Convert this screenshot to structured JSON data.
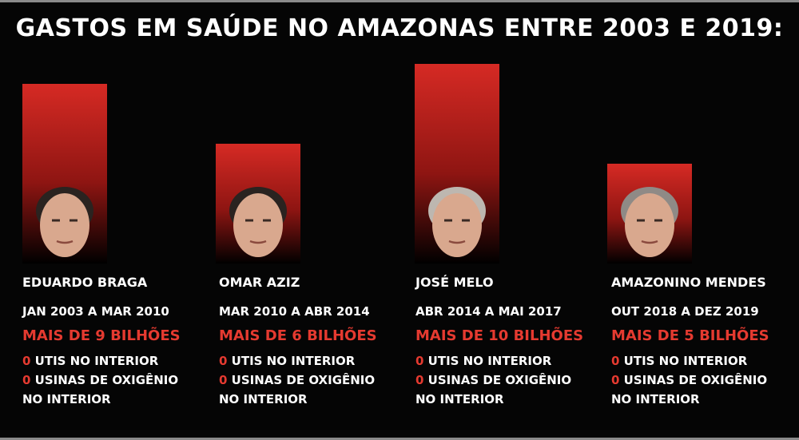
{
  "title": "GASTOS EM SAÚDE NO AMAZONAS ENTRE 2003 E 2019:",
  "colors": {
    "bar_top": "#d62a24",
    "bar_bottom": "#000000",
    "accent": "#e53a30"
  },
  "chart_data": {
    "type": "bar",
    "title": "GASTOS EM SAÚDE NO AMAZONAS ENTRE 2003 E 2019:",
    "categories": [
      "EDUARDO BRAGA",
      "OMAR AZIZ",
      "JOSÉ MELO",
      "AMAZONINO MENDES"
    ],
    "values": [
      9,
      6,
      10,
      5
    ],
    "ylim": [
      0,
      10
    ],
    "grid": false,
    "portrait_icons": [
      "portrait-eduardo-braga",
      "portrait-omar-aziz",
      "portrait-jose-melo",
      "portrait-amazonino-mendes"
    ]
  },
  "columns": [
    {
      "name": "EDUARDO BRAGA",
      "period": "JAN 2003 A MAR 2010",
      "amount": "MAIS DE 9 BILHÕES",
      "zero1": "0",
      "line1": " UTIS NO INTERIOR",
      "zero2": "0",
      "line2": " USINAS DE OXIGÊNIO",
      "line3": "NO INTERIOR"
    },
    {
      "name": "OMAR AZIZ",
      "period": "MAR  2010 A ABR 2014",
      "amount": "MAIS DE 6 BILHÕES",
      "zero1": "0",
      "line1": " UTIS NO INTERIOR",
      "zero2": "0",
      "line2": " USINAS DE OXIGÊNIO",
      "line3": "NO INTERIOR"
    },
    {
      "name": "JOSÉ MELO",
      "period": "ABR 2014 A MAI 2017",
      "amount": "MAIS DE 10 BILHÕES",
      "zero1": "0",
      "line1": " UTIS NO INTERIOR",
      "zero2": "0",
      "line2": " USINAS DE OXIGÊNIO",
      "line3": "NO INTERIOR"
    },
    {
      "name": "AMAZONINO MENDES",
      "period": "OUT 2018 A DEZ 2019",
      "amount": "MAIS DE 5 BILHÕES",
      "zero1": "0",
      "line1": " UTIS NO INTERIOR",
      "zero2": "0",
      "line2": " USINAS DE OXIGÊNIO",
      "line3": "NO INTERIOR"
    }
  ]
}
